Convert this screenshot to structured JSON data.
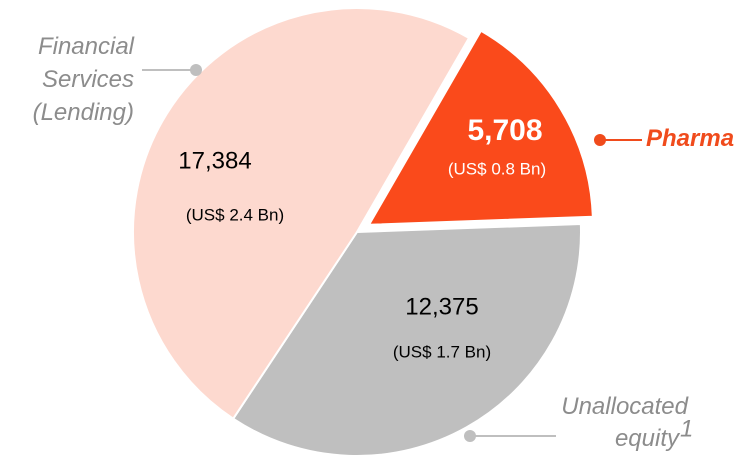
{
  "chart_data": {
    "type": "pie",
    "categories": [
      {
        "lines": [
          "Pharma"
        ]
      },
      {
        "lines": [
          "Unallocated",
          "equity"
        ],
        "note": "1"
      },
      {
        "lines": [
          "Financial",
          "Services",
          "(Lending)"
        ]
      }
    ],
    "values": [
      5708,
      12375,
      17384
    ],
    "value_labels": [
      "5,708",
      "12,375",
      "17,384"
    ],
    "usd_labels": [
      "(US$ 0.8 Bn)",
      "(US$ 1.7 Bn)",
      "(US$ 2.4 Bn)"
    ],
    "colors": [
      "#fa4a1b",
      "#bfbfbf",
      "#fdd9cf"
    ],
    "exploded": [
      true,
      false,
      false
    ]
  }
}
